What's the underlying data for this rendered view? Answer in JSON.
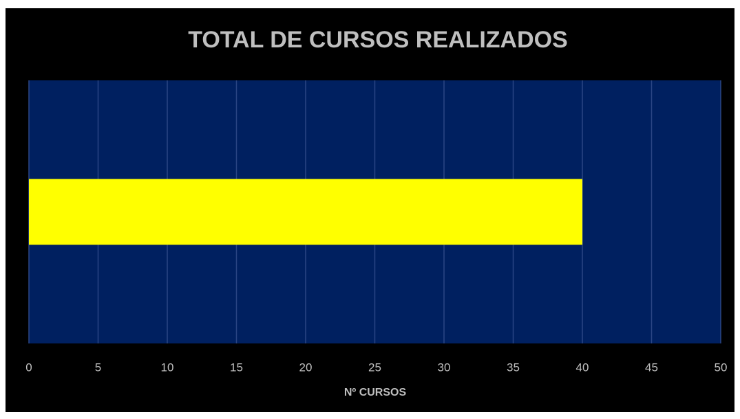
{
  "chart_data": {
    "type": "hbar",
    "title": "TOTAL DE CURSOS REALIZADOS",
    "x_label": "Nº CURSOS",
    "categories": [
      null
    ],
    "values": [
      40
    ],
    "color": "#ffff00",
    "plot_background": "#002060",
    "xlim": [
      0,
      50
    ],
    "xticks": [
      0,
      5,
      10,
      15,
      20,
      25,
      30,
      35,
      40,
      45,
      50
    ],
    "grid": true
  }
}
